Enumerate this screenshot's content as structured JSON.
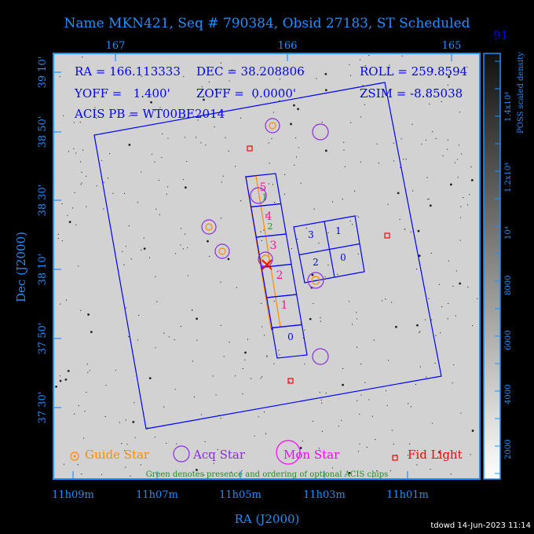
{
  "title": "Name MKN421, Seq # 790384, Obsid 27183, ST Scheduled",
  "info": {
    "ra": "RA = 166.113333",
    "dec": "DEC = 38.208806",
    "roll": "ROLL = 259.8594",
    "yoff": "YOFF =   1.400'",
    "zoff": "ZOFF =  0.0000'",
    "zsim": "ZSIM = -8.85038",
    "acis_pb": "ACIS PB = WT00BE2014",
    "overflow": "91"
  },
  "axes": {
    "top_ticks": [
      "167",
      "166",
      "165"
    ],
    "left_ticks": [
      "39 10'",
      "38 50'",
      "38 30'",
      "38 10'",
      "37 50'",
      "37 30'"
    ],
    "bottom_ticks": [
      "11h09m",
      "11h07m",
      "11h05m",
      "11h03m",
      "11h01m"
    ],
    "xlabel": "RA (J2000)",
    "ylabel": "Dec (J2000)"
  },
  "colorbar": {
    "label": "POSS scaled density",
    "ticks": [
      "2000",
      "4000",
      "6000",
      "8000",
      "10⁴",
      "1.2x10⁴",
      "1.4x10⁴"
    ]
  },
  "legend": {
    "guide": "Guide Star",
    "acq": "Acq Star",
    "mon": "Mon Star",
    "fid": "Fid Light",
    "note": "Green denotes presence and ordering of optional ACIS chips"
  },
  "chips": {
    "s_labels": [
      "0",
      "1",
      "2",
      "3",
      "4",
      "5"
    ],
    "optional_labels": [
      "1",
      "2"
    ],
    "i_labels": [
      "0",
      "1",
      "2",
      "3"
    ]
  },
  "colors": {
    "frame": "#1e90ff",
    "text": "#0000ff",
    "guide": "#ff8c00",
    "acq": "#8a2be2",
    "mon": "#ff00ff",
    "fid": "#ff0000",
    "optional": "#228b22",
    "chip_label": "#ff1493"
  },
  "footer": "tdowd 14-Jun-2023 11:14"
}
